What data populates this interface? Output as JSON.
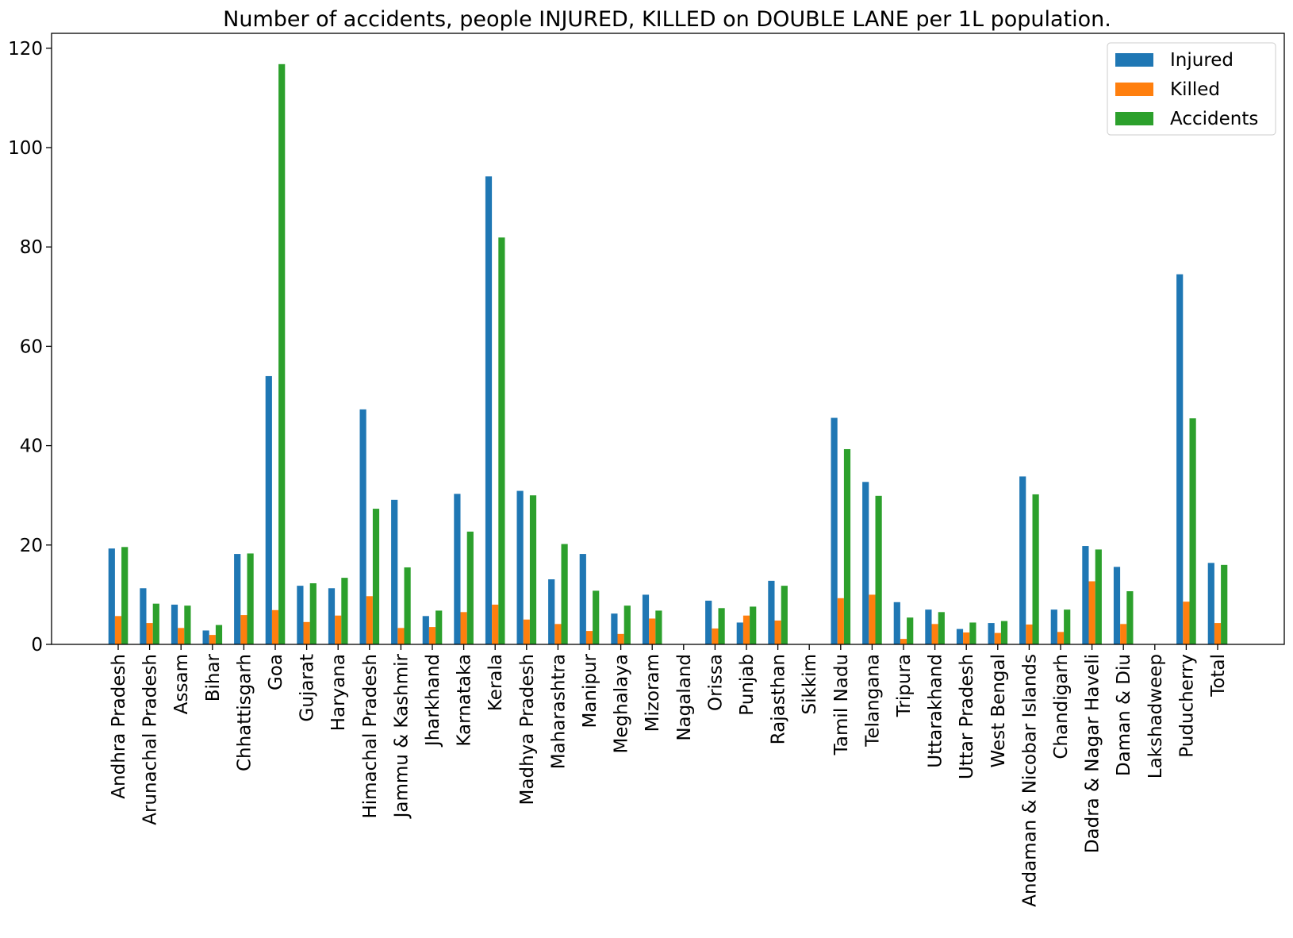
{
  "chart_data": {
    "type": "bar",
    "title": "Number of accidents, people INJURED, KILLED on DOUBLE LANE per 1L population.",
    "xlabel": "",
    "ylabel": "",
    "ylim": [
      0,
      123
    ],
    "yticks": [
      0,
      20,
      40,
      60,
      80,
      100,
      120
    ],
    "grid": false,
    "legend_position": "top-right",
    "categories": [
      "Andhra Pradesh",
      "Arunachal Pradesh",
      "Assam",
      "Bihar",
      "Chhattisgarh",
      "Goa",
      "Gujarat",
      "Haryana",
      "Himachal Pradesh",
      "Jammu & Kashmir",
      "Jharkhand",
      "Karnataka",
      "Kerala",
      "Madhya Pradesh",
      "Maharashtra",
      "Manipur",
      "Meghalaya",
      "Mizoram",
      "Nagaland",
      "Orissa",
      "Punjab",
      "Rajasthan",
      "Sikkim",
      "Tamil Nadu",
      "Telangana",
      "Tripura",
      "Uttarakhand",
      "Uttar Pradesh",
      "West Bengal",
      "Andaman & Nicobar Islands",
      "Chandigarh",
      "Dadra & Nagar Haveli",
      "Daman & Diu",
      "Lakshadweep",
      "Puducherry",
      "Total"
    ],
    "series": [
      {
        "name": "Injured",
        "color": "#1f77b4",
        "values": [
          19.3,
          11.3,
          8.0,
          2.8,
          18.2,
          54.0,
          11.8,
          11.3,
          47.3,
          29.1,
          5.7,
          30.3,
          94.2,
          30.9,
          13.1,
          18.2,
          6.2,
          10.0,
          0,
          8.8,
          4.4,
          12.8,
          0,
          45.6,
          32.7,
          8.5,
          7.0,
          3.1,
          4.3,
          33.8,
          7.0,
          19.8,
          15.6,
          0,
          74.5,
          16.4
        ]
      },
      {
        "name": "Killed",
        "color": "#ff7f0e",
        "values": [
          5.7,
          4.3,
          3.3,
          1.9,
          5.9,
          6.9,
          4.5,
          5.8,
          9.7,
          3.3,
          3.5,
          6.5,
          8.0,
          5.0,
          4.1,
          2.7,
          2.1,
          5.2,
          0,
          3.2,
          5.8,
          4.8,
          0,
          9.3,
          10.0,
          1.1,
          4.1,
          2.4,
          2.3,
          4.0,
          2.5,
          12.7,
          4.1,
          0,
          8.6,
          4.3
        ]
      },
      {
        "name": "Accidents",
        "color": "#2ca02c",
        "values": [
          19.6,
          8.2,
          7.8,
          3.9,
          18.3,
          116.8,
          12.3,
          13.4,
          27.3,
          15.5,
          6.8,
          22.7,
          81.9,
          30.0,
          20.2,
          10.8,
          7.8,
          6.8,
          0,
          7.3,
          7.6,
          11.8,
          0,
          39.3,
          29.9,
          5.4,
          6.5,
          4.4,
          4.7,
          30.2,
          7.0,
          19.1,
          10.7,
          0,
          45.5,
          16.0
        ]
      }
    ]
  }
}
